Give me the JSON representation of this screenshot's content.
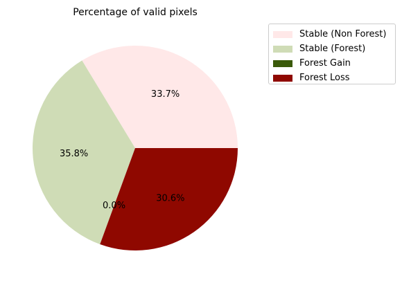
{
  "chart_data": {
    "type": "pie",
    "title": "Percentage of valid pixels",
    "categories": [
      "Stable (Non Forest)",
      "Stable (Forest)",
      "Forest Gain",
      "Forest Loss"
    ],
    "values": [
      33.7,
      35.8,
      0.0,
      30.6
    ],
    "labels": [
      "33.7%",
      "35.8%",
      "0.0%",
      "30.6%"
    ],
    "colors": [
      "#ffe8e8",
      "#cfdcb6",
      "#3a5a0a",
      "#8f0800"
    ],
    "legend_position": "top-right",
    "start_angle_deg": 0,
    "direction": "counterclockwise"
  }
}
